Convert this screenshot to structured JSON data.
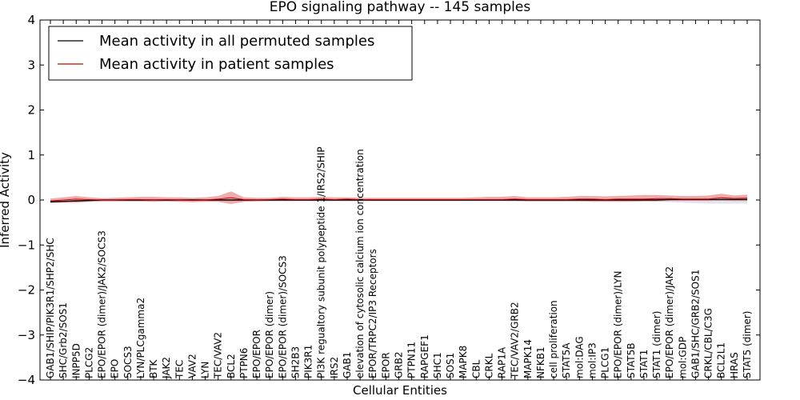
{
  "chart_data": {
    "type": "line",
    "title": "EPO signaling pathway -- 145 samples",
    "xlabel": "Cellular Entities",
    "ylabel": "Inferred Activity",
    "ylim": [
      -4,
      4
    ],
    "yticks": [
      -4,
      -3,
      -2,
      -1,
      0,
      1,
      2,
      3,
      4
    ],
    "ytick_labels": [
      "−4",
      "−3",
      "−2",
      "−1",
      "0",
      "1",
      "2",
      "3",
      "4"
    ],
    "grid": false,
    "legend_position": "top-left",
    "categories": [
      "GAB1/SHIP/PIK3R1/SHP2/SHC",
      "SHC/Grb2/SOS1",
      "INPP5D",
      "PLCG2",
      "EPO/EPOR (dimer)/JAK2/SOCS3",
      "EPO",
      "SOCS3",
      "LYN/PLCgamma2",
      "BTK",
      "JAK2",
      "TEC",
      "VAV2",
      "LYN",
      "TEC/VAV2",
      "BCL2",
      "PTPN6",
      "EPO/EPOR",
      "EPO/EPOR (dimer)",
      "EPO/EPOR (dimer)/SOCS3",
      "SH2B3",
      "PIK3R1",
      "PI3K regualtory subunit polypeptide 1/IRS2/SHIP",
      "IRS2",
      "GAB1",
      "elevation of cytosolic calcium ion concentration",
      "EPOR/TRPC2/IP3 Receptors",
      "EPOR",
      "GRB2",
      "PTPN11",
      "RAPGEF1",
      "SHC1",
      "SOS1",
      "MAPK8",
      "CBL",
      "CRKL",
      "RAP1A",
      "TEC/VAV2/GRB2",
      "MAPK14",
      "NFKB1",
      "cell proliferation",
      "STAT5A",
      "mol:DAG",
      "mol:IP3",
      "PLCG1",
      "EPO/EPOR (dimer)/LYN",
      "STAT5B",
      "STAT1",
      "STAT1 (dimer)",
      "EPO/EPOR (dimer)/JAK2",
      "mol:GDP",
      "GAB1/SHC/GRB2/SOS1",
      "CRKL/CBL/C3G",
      "BCL2L1",
      "HRAS",
      "STAT5 (dimer)"
    ],
    "series": [
      {
        "name": "Mean activity in all permuted samples",
        "color": "#000000",
        "band_color": "#bfbfdf",
        "values": [
          -0.04,
          -0.03,
          -0.02,
          -0.01,
          0,
          0,
          0,
          0,
          0,
          0,
          0,
          0,
          0,
          0,
          0,
          0,
          0,
          0,
          0,
          0,
          0,
          0,
          0,
          0,
          0,
          0,
          0,
          0,
          0,
          0,
          0,
          0,
          0,
          0,
          0,
          0,
          0,
          0,
          0,
          0,
          0,
          0,
          0,
          0,
          0,
          0,
          0,
          0,
          0.01,
          0.01,
          0.01,
          0.01,
          0.01,
          0.01,
          0.01
        ],
        "lower": [
          -0.07,
          -0.06,
          -0.05,
          -0.04,
          -0.03,
          -0.03,
          -0.03,
          -0.03,
          -0.03,
          -0.03,
          -0.03,
          -0.03,
          -0.03,
          -0.03,
          -0.03,
          -0.03,
          -0.03,
          -0.03,
          -0.03,
          -0.03,
          -0.03,
          -0.03,
          -0.03,
          -0.03,
          -0.03,
          -0.03,
          -0.03,
          -0.03,
          -0.03,
          -0.03,
          -0.03,
          -0.03,
          -0.03,
          -0.03,
          -0.03,
          -0.03,
          -0.03,
          -0.03,
          -0.03,
          -0.03,
          -0.03,
          -0.03,
          -0.03,
          -0.03,
          -0.03,
          -0.03,
          -0.03,
          -0.03,
          -0.05,
          -0.06,
          -0.07,
          -0.08,
          -0.08,
          -0.08,
          -0.08
        ],
        "upper": [
          -0.01,
          0.0,
          0.01,
          0.02,
          0.03,
          0.03,
          0.03,
          0.03,
          0.03,
          0.03,
          0.03,
          0.03,
          0.03,
          0.03,
          0.03,
          0.03,
          0.03,
          0.03,
          0.03,
          0.03,
          0.03,
          0.03,
          0.03,
          0.03,
          0.03,
          0.03,
          0.03,
          0.03,
          0.03,
          0.03,
          0.03,
          0.03,
          0.03,
          0.03,
          0.03,
          0.03,
          0.03,
          0.03,
          0.03,
          0.03,
          0.03,
          0.03,
          0.03,
          0.03,
          0.03,
          0.03,
          0.03,
          0.03,
          0.05,
          0.06,
          0.06,
          0.06,
          0.07,
          0.07,
          0.07
        ]
      },
      {
        "name": "Mean activity in patient samples",
        "color": "#cc0000",
        "band_color": "#e88080",
        "values": [
          -0.02,
          0.0,
          0.02,
          0.01,
          0.0,
          0.0,
          0.01,
          0.01,
          0.0,
          0.01,
          0.0,
          -0.01,
          0.0,
          0.02,
          0.05,
          0.01,
          0.0,
          0.01,
          0.02,
          0.01,
          0.01,
          0.02,
          0.01,
          0.02,
          0.01,
          0.01,
          0.01,
          0.01,
          0.01,
          0.01,
          0.01,
          0.01,
          0.01,
          0.01,
          0.01,
          0.01,
          0.02,
          0.01,
          0.01,
          0.01,
          0.01,
          0.02,
          0.02,
          0.01,
          0.02,
          0.02,
          0.02,
          0.03,
          0.03,
          0.02,
          0.02,
          0.02,
          0.05,
          0.03,
          0.04
        ],
        "lower": [
          -0.06,
          -0.06,
          -0.06,
          -0.04,
          -0.03,
          -0.03,
          -0.03,
          -0.03,
          -0.04,
          -0.03,
          -0.04,
          -0.05,
          -0.04,
          -0.04,
          -0.09,
          -0.04,
          -0.03,
          -0.02,
          -0.02,
          -0.02,
          -0.02,
          -0.02,
          -0.02,
          -0.02,
          -0.02,
          -0.02,
          -0.02,
          -0.02,
          -0.02,
          -0.02,
          -0.02,
          -0.02,
          -0.02,
          -0.02,
          -0.02,
          -0.02,
          -0.02,
          -0.03,
          -0.03,
          -0.03,
          -0.03,
          -0.03,
          -0.04,
          -0.04,
          -0.04,
          -0.04,
          -0.03,
          -0.03,
          -0.02,
          -0.02,
          -0.02,
          -0.02,
          -0.01,
          -0.02,
          -0.02
        ],
        "upper": [
          0.03,
          0.06,
          0.09,
          0.06,
          0.04,
          0.05,
          0.06,
          0.07,
          0.07,
          0.06,
          0.06,
          0.05,
          0.06,
          0.09,
          0.19,
          0.06,
          0.05,
          0.05,
          0.07,
          0.06,
          0.06,
          0.07,
          0.06,
          0.06,
          0.05,
          0.05,
          0.05,
          0.05,
          0.05,
          0.05,
          0.05,
          0.05,
          0.05,
          0.06,
          0.07,
          0.07,
          0.09,
          0.06,
          0.06,
          0.06,
          0.07,
          0.09,
          0.09,
          0.08,
          0.09,
          0.1,
          0.11,
          0.11,
          0.1,
          0.09,
          0.09,
          0.1,
          0.14,
          0.1,
          0.12
        ]
      }
    ]
  }
}
